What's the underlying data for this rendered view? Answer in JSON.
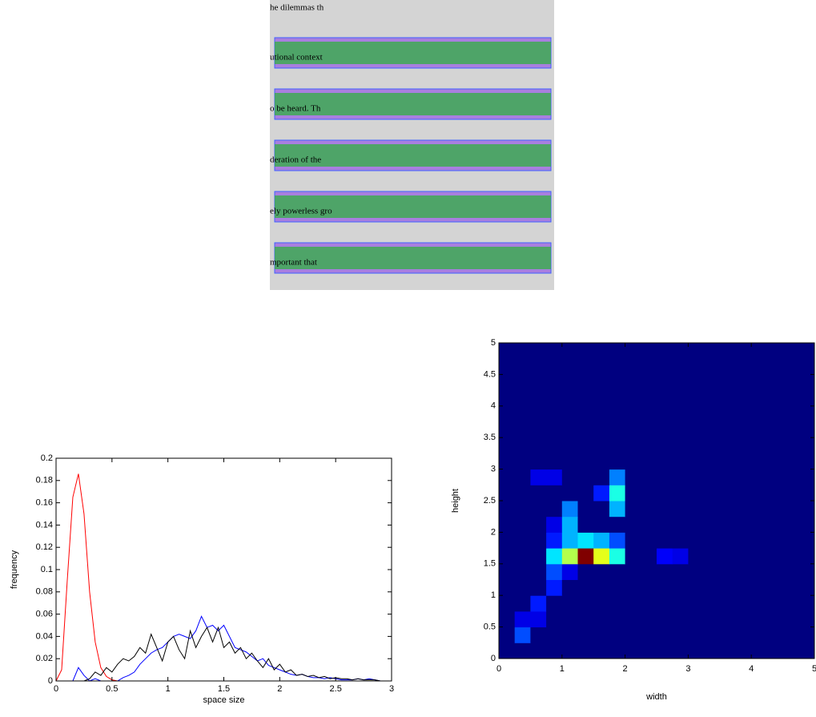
{
  "image": {
    "lines": [
      "he dilemmas th",
      "utional context",
      "o be heard. Th",
      "deration of the",
      "ely powerless gro",
      "mportant that"
    ]
  },
  "chart_data": [
    {
      "type": "line",
      "xlabel": "space size",
      "ylabel": "frequency",
      "x": [
        0,
        0.05,
        0.1,
        0.15,
        0.2,
        0.25,
        0.3,
        0.35,
        0.4,
        0.45,
        0.5,
        0.55,
        0.6,
        0.65,
        0.7,
        0.75,
        0.8,
        0.85,
        0.9,
        0.95,
        1,
        1.05,
        1.1,
        1.15,
        1.2,
        1.25,
        1.3,
        1.35,
        1.4,
        1.45,
        1.5,
        1.55,
        1.6,
        1.65,
        1.7,
        1.75,
        1.8,
        1.85,
        1.9,
        1.95,
        2,
        2.05,
        2.1,
        2.15,
        2.2,
        2.25,
        2.3,
        2.35,
        2.4,
        2.45,
        2.5,
        2.55,
        2.6,
        2.65,
        2.7,
        2.75,
        2.8,
        2.85,
        2.9,
        2.95,
        3
      ],
      "series": [
        {
          "color": "#ff0000",
          "values": [
            0,
            0.01,
            0.09,
            0.165,
            0.186,
            0.15,
            0.08,
            0.035,
            0.012,
            0.004,
            0.001,
            0,
            0,
            0,
            0,
            0,
            0,
            0,
            0,
            0,
            0,
            0,
            0,
            0,
            0,
            0,
            0,
            0,
            0,
            0,
            0,
            0,
            0,
            0,
            0,
            0,
            0,
            0,
            0,
            0,
            0,
            0,
            0,
            0,
            0,
            0,
            0,
            0,
            0,
            0,
            0,
            0,
            0,
            0,
            0,
            0,
            0,
            0,
            0,
            0,
            0
          ]
        },
        {
          "color": "#0000ff",
          "values": [
            0,
            0,
            0,
            0,
            0.012,
            0.005,
            0,
            0.002,
            0,
            0,
            0,
            0,
            0.003,
            0.005,
            0.008,
            0.015,
            0.02,
            0.025,
            0.028,
            0.03,
            0.035,
            0.04,
            0.042,
            0.04,
            0.038,
            0.045,
            0.058,
            0.048,
            0.05,
            0.045,
            0.05,
            0.04,
            0.03,
            0.028,
            0.026,
            0.022,
            0.018,
            0.02,
            0.014,
            0.012,
            0.01,
            0.008,
            0.006,
            0.005,
            0.006,
            0.004,
            0.003,
            0.003,
            0.002,
            0.003,
            0.002,
            0.001,
            0.001,
            0.001,
            0.002,
            0.001,
            0.002,
            0.001,
            0,
            0,
            0
          ]
        },
        {
          "color": "#000000",
          "values": [
            0,
            0,
            0,
            0,
            0,
            0,
            0.002,
            0.008,
            0.005,
            0.012,
            0.008,
            0.015,
            0.02,
            0.018,
            0.022,
            0.03,
            0.025,
            0.042,
            0.03,
            0.018,
            0.035,
            0.04,
            0.028,
            0.02,
            0.045,
            0.03,
            0.04,
            0.048,
            0.035,
            0.048,
            0.03,
            0.035,
            0.025,
            0.03,
            0.02,
            0.025,
            0.018,
            0.012,
            0.02,
            0.01,
            0.015,
            0.008,
            0.01,
            0.005,
            0.006,
            0.004,
            0.005,
            0.003,
            0.004,
            0.002,
            0.003,
            0.002,
            0.002,
            0.001,
            0.002,
            0.001,
            0.001,
            0.001,
            0,
            0,
            0
          ]
        }
      ],
      "xlim": [
        0,
        3
      ],
      "xticks": [
        0,
        0.5,
        1,
        1.5,
        2,
        2.5,
        3
      ],
      "ylim": [
        0,
        0.2
      ],
      "yticks": [
        0,
        0.02,
        0.04,
        0.06,
        0.08,
        0.1,
        0.12,
        0.14,
        0.16,
        0.18,
        0.2
      ]
    },
    {
      "type": "heatmap",
      "xlabel": "width",
      "ylabel": "height",
      "colormap": "jet",
      "xlim": [
        0,
        5
      ],
      "xticks": [
        0,
        1,
        2,
        3,
        4,
        5
      ],
      "ylim": [
        0,
        5
      ],
      "yticks": [
        0,
        0.5,
        1,
        1.5,
        2,
        2.5,
        3,
        3.5,
        4,
        4.5,
        5
      ],
      "z": [
        [
          0,
          0,
          0,
          0,
          0,
          0,
          0,
          0,
          0,
          0,
          0,
          0,
          0,
          0,
          0,
          0,
          0,
          0,
          0,
          0
        ],
        [
          0,
          0.2,
          0,
          0,
          0,
          0,
          0,
          0,
          0,
          0,
          0,
          0,
          0,
          0,
          0,
          0,
          0,
          0,
          0,
          0
        ],
        [
          0,
          0.1,
          0.1,
          0,
          0,
          0,
          0,
          0,
          0,
          0,
          0,
          0,
          0,
          0,
          0,
          0,
          0,
          0,
          0,
          0
        ],
        [
          0,
          0,
          0.15,
          0,
          0,
          0,
          0,
          0,
          0,
          0,
          0,
          0,
          0,
          0,
          0,
          0,
          0,
          0,
          0,
          0
        ],
        [
          0,
          0,
          0,
          0.15,
          0,
          0,
          0,
          0,
          0,
          0,
          0,
          0,
          0,
          0,
          0,
          0,
          0,
          0,
          0,
          0
        ],
        [
          0,
          0,
          0,
          0.2,
          0.1,
          0,
          0,
          0,
          0,
          0,
          0,
          0,
          0,
          0,
          0,
          0,
          0,
          0,
          0,
          0
        ],
        [
          0,
          0,
          0,
          0.35,
          0.55,
          1,
          0.6,
          0.4,
          0,
          0,
          0.12,
          0.1,
          0,
          0,
          0,
          0,
          0,
          0,
          0,
          0
        ],
        [
          0,
          0,
          0,
          0.15,
          0.3,
          0.35,
          0.3,
          0.2,
          0,
          0,
          0,
          0,
          0,
          0,
          0,
          0,
          0,
          0,
          0,
          0
        ],
        [
          0,
          0,
          0,
          0.1,
          0.3,
          0,
          0,
          0,
          0,
          0,
          0,
          0,
          0,
          0,
          0,
          0,
          0,
          0,
          0,
          0
        ],
        [
          0,
          0,
          0,
          0,
          0.25,
          0,
          0,
          0.3,
          0,
          0,
          0,
          0,
          0,
          0,
          0,
          0,
          0,
          0,
          0,
          0
        ],
        [
          0,
          0,
          0,
          0,
          0,
          0,
          0.15,
          0.4,
          0,
          0,
          0,
          0,
          0,
          0,
          0,
          0,
          0,
          0,
          0,
          0
        ],
        [
          0,
          0,
          0.1,
          0.1,
          0,
          0,
          0,
          0.25,
          0,
          0,
          0,
          0,
          0,
          0,
          0,
          0,
          0,
          0,
          0,
          0
        ],
        [
          0,
          0,
          0,
          0,
          0,
          0,
          0,
          0,
          0,
          0,
          0,
          0,
          0,
          0,
          0,
          0,
          0,
          0,
          0,
          0
        ],
        [
          0,
          0,
          0,
          0,
          0,
          0,
          0,
          0,
          0,
          0,
          0,
          0,
          0,
          0,
          0,
          0,
          0,
          0,
          0,
          0
        ],
        [
          0,
          0,
          0,
          0,
          0,
          0,
          0,
          0,
          0,
          0,
          0,
          0,
          0,
          0,
          0,
          0,
          0,
          0,
          0,
          0
        ],
        [
          0,
          0,
          0,
          0,
          0,
          0,
          0,
          0,
          0,
          0,
          0,
          0,
          0,
          0,
          0,
          0,
          0,
          0,
          0,
          0
        ],
        [
          0,
          0,
          0,
          0,
          0,
          0,
          0,
          0,
          0,
          0,
          0,
          0,
          0,
          0,
          0,
          0,
          0,
          0,
          0,
          0
        ],
        [
          0,
          0,
          0,
          0,
          0,
          0,
          0,
          0,
          0,
          0,
          0,
          0,
          0,
          0,
          0,
          0,
          0,
          0,
          0,
          0
        ],
        [
          0,
          0,
          0,
          0,
          0,
          0,
          0,
          0,
          0,
          0,
          0,
          0,
          0,
          0,
          0,
          0,
          0,
          0,
          0,
          0
        ],
        [
          0,
          0,
          0,
          0,
          0,
          0,
          0,
          0,
          0,
          0,
          0,
          0,
          0,
          0,
          0,
          0,
          0,
          0,
          0,
          0
        ]
      ]
    }
  ]
}
